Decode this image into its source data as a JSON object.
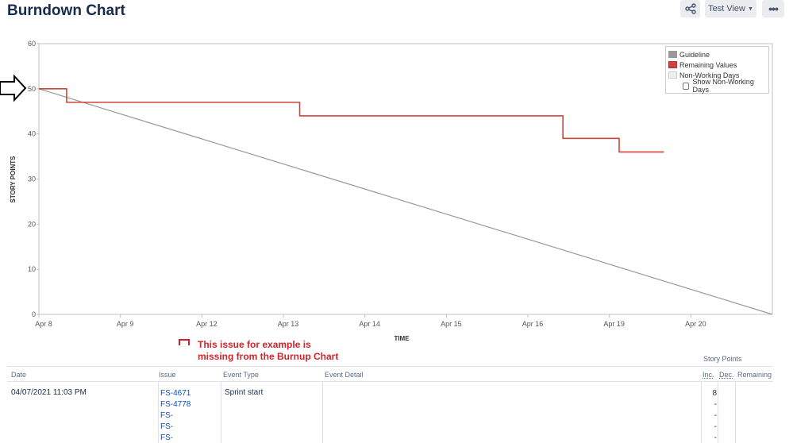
{
  "page": {
    "title": "Burndown Chart"
  },
  "toolbar": {
    "share_icon": "share-icon",
    "view_label": "Test View",
    "more_icon": "more-icon"
  },
  "chart_data": {
    "type": "line",
    "xlabel": "TIME",
    "ylabel": "STORY POINTS",
    "ylim": [
      0,
      60
    ],
    "yticks": [
      0,
      10,
      20,
      30,
      40,
      50,
      60
    ],
    "xticks": [
      "Apr 8",
      "Apr 9",
      "Apr 12",
      "Apr 13",
      "Apr 14",
      "Apr 15",
      "Apr 16",
      "Apr 19",
      "Apr 20"
    ],
    "x_range_working_days": [
      0,
      9
    ],
    "series": [
      {
        "name": "Guideline",
        "color": "#999999",
        "style": "line",
        "points": [
          [
            0,
            50
          ],
          [
            9,
            0
          ]
        ]
      },
      {
        "name": "Remaining Values",
        "color": "#d04437",
        "style": "step",
        "points": [
          [
            0,
            50
          ],
          [
            0.34,
            50
          ],
          [
            0.34,
            47
          ],
          [
            3.2,
            47
          ],
          [
            3.2,
            44
          ],
          [
            6.43,
            44
          ],
          [
            6.43,
            39
          ],
          [
            7.12,
            39
          ],
          [
            7.12,
            36
          ],
          [
            7.67,
            36
          ]
        ]
      }
    ],
    "legend": {
      "placement": "top-right",
      "items": [
        {
          "label": "Guideline",
          "color": "#999999"
        },
        {
          "label": "Remaining Values",
          "color": "#d04437"
        },
        {
          "label": "Non-Working Days",
          "color": "#eeeeee"
        }
      ],
      "checkbox_label": "Show Non-Working Days"
    },
    "grid": false
  },
  "annotation": {
    "line1": "This issue for example is",
    "line2": "missing from the Burnup Chart",
    "color": "#d0232a"
  },
  "table": {
    "caption": "Story Points",
    "headers": {
      "date": "Date",
      "issue": "Issue",
      "event_type": "Event Type",
      "event_detail": "Event Detail",
      "inc": "Inc.",
      "dec": "Dec.",
      "remaining": "Remaining"
    },
    "rows": [
      {
        "date": "04/07/2021 11:03 PM",
        "issues": [
          "FS-4671",
          "FS-4778",
          "FS-",
          "FS-",
          "FS-"
        ],
        "event_type": "Sprint start",
        "event_detail": "",
        "inc": [
          "8",
          "-",
          "-",
          "-",
          "-"
        ]
      }
    ]
  }
}
